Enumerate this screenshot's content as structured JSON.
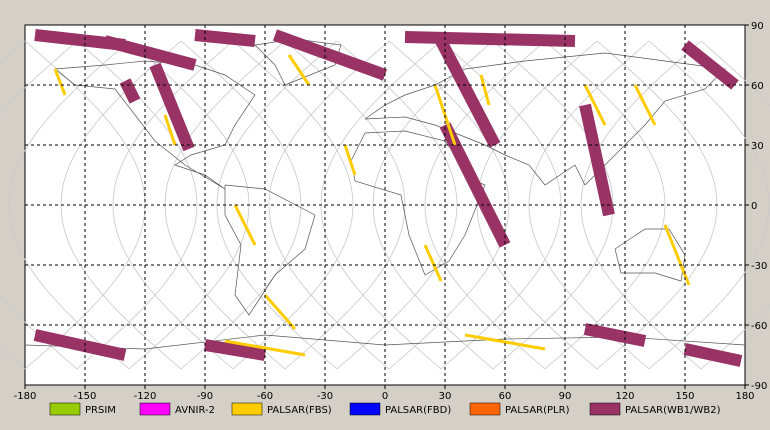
{
  "chart_data": {
    "type": "map",
    "projection": "equirectangular",
    "x_ticks": [
      "-180",
      "-150",
      "-120",
      "-90",
      "-60",
      "-30",
      "0",
      "30",
      "60",
      "90",
      "120",
      "150",
      "180"
    ],
    "y_ticks_right": [
      "90",
      "60",
      "30",
      "0",
      "-30",
      "-60",
      "-90"
    ],
    "legend": [
      {
        "label": "PRSIM",
        "color": "#99cc00"
      },
      {
        "label": "AVNIR-2",
        "color": "#ff00ff"
      },
      {
        "label": "PALSAR(FBS)",
        "color": "#ffcc00"
      },
      {
        "label": "PALSAR(FBD)",
        "color": "#0000ff"
      },
      {
        "label": "PALSAR(PLR)",
        "color": "#ff6600"
      },
      {
        "label": "PALSAR(WB1/WB2)",
        "color": "#993366"
      }
    ],
    "colors": {
      "background": "#d4d0c8",
      "plot_bg": "#ffffff",
      "grid": "#000000",
      "orbit": "#c8c8c8",
      "coast": "#555555",
      "wb": "#993366",
      "fbs": "#ffcc00"
    },
    "wb_swaths": [
      {
        "lon": [
          -175,
          -130
        ],
        "lat": [
          85,
          80
        ]
      },
      {
        "lon": [
          -140,
          -95
        ],
        "lat": [
          82,
          70
        ]
      },
      {
        "lon": [
          -115,
          -98
        ],
        "lat": [
          70,
          28
        ]
      },
      {
        "lon": [
          -130,
          -125
        ],
        "lat": [
          62,
          52
        ]
      },
      {
        "lon": [
          -95,
          -65
        ],
        "lat": [
          85,
          82
        ]
      },
      {
        "lon": [
          -55,
          0
        ],
        "lat": [
          85,
          65
        ]
      },
      {
        "lon": [
          28,
          55
        ],
        "lat": [
          82,
          30
        ]
      },
      {
        "lon": [
          10,
          95
        ],
        "lat": [
          84,
          82
        ]
      },
      {
        "lon": [
          30,
          60
        ],
        "lat": [
          40,
          -20
        ]
      },
      {
        "lon": [
          100,
          112
        ],
        "lat": [
          50,
          -5
        ]
      },
      {
        "lon": [
          150,
          175
        ],
        "lat": [
          80,
          60
        ]
      },
      {
        "lon": [
          -175,
          -130
        ],
        "lat": [
          -65,
          -75
        ]
      },
      {
        "lon": [
          -90,
          -60
        ],
        "lat": [
          -70,
          -75
        ]
      },
      {
        "lon": [
          100,
          130
        ],
        "lat": [
          -62,
          -68
        ]
      },
      {
        "lon": [
          150,
          178
        ],
        "lat": [
          -72,
          -78
        ]
      }
    ],
    "fbs_strips": [
      {
        "lon": [
          -165,
          -160
        ],
        "lat": [
          68,
          55
        ]
      },
      {
        "lon": [
          -110,
          -105
        ],
        "lat": [
          45,
          30
        ]
      },
      {
        "lon": [
          -75,
          -65
        ],
        "lat": [
          0,
          -20
        ]
      },
      {
        "lon": [
          -60,
          -45
        ],
        "lat": [
          -45,
          -62
        ]
      },
      {
        "lon": [
          -48,
          -38
        ],
        "lat": [
          75,
          60
        ]
      },
      {
        "lon": [
          -20,
          -15
        ],
        "lat": [
          30,
          15
        ]
      },
      {
        "lon": [
          25,
          35
        ],
        "lat": [
          60,
          30
        ]
      },
      {
        "lon": [
          20,
          28
        ],
        "lat": [
          -20,
          -38
        ]
      },
      {
        "lon": [
          48,
          52
        ],
        "lat": [
          65,
          50
        ]
      },
      {
        "lon": [
          100,
          110
        ],
        "lat": [
          60,
          40
        ]
      },
      {
        "lon": [
          125,
          135
        ],
        "lat": [
          60,
          40
        ]
      },
      {
        "lon": [
          140,
          152
        ],
        "lat": [
          -10,
          -40
        ]
      },
      {
        "lon": [
          40,
          80
        ],
        "lat": [
          -65,
          -72
        ]
      },
      {
        "lon": [
          -80,
          -40
        ],
        "lat": [
          -68,
          -75
        ]
      }
    ]
  }
}
